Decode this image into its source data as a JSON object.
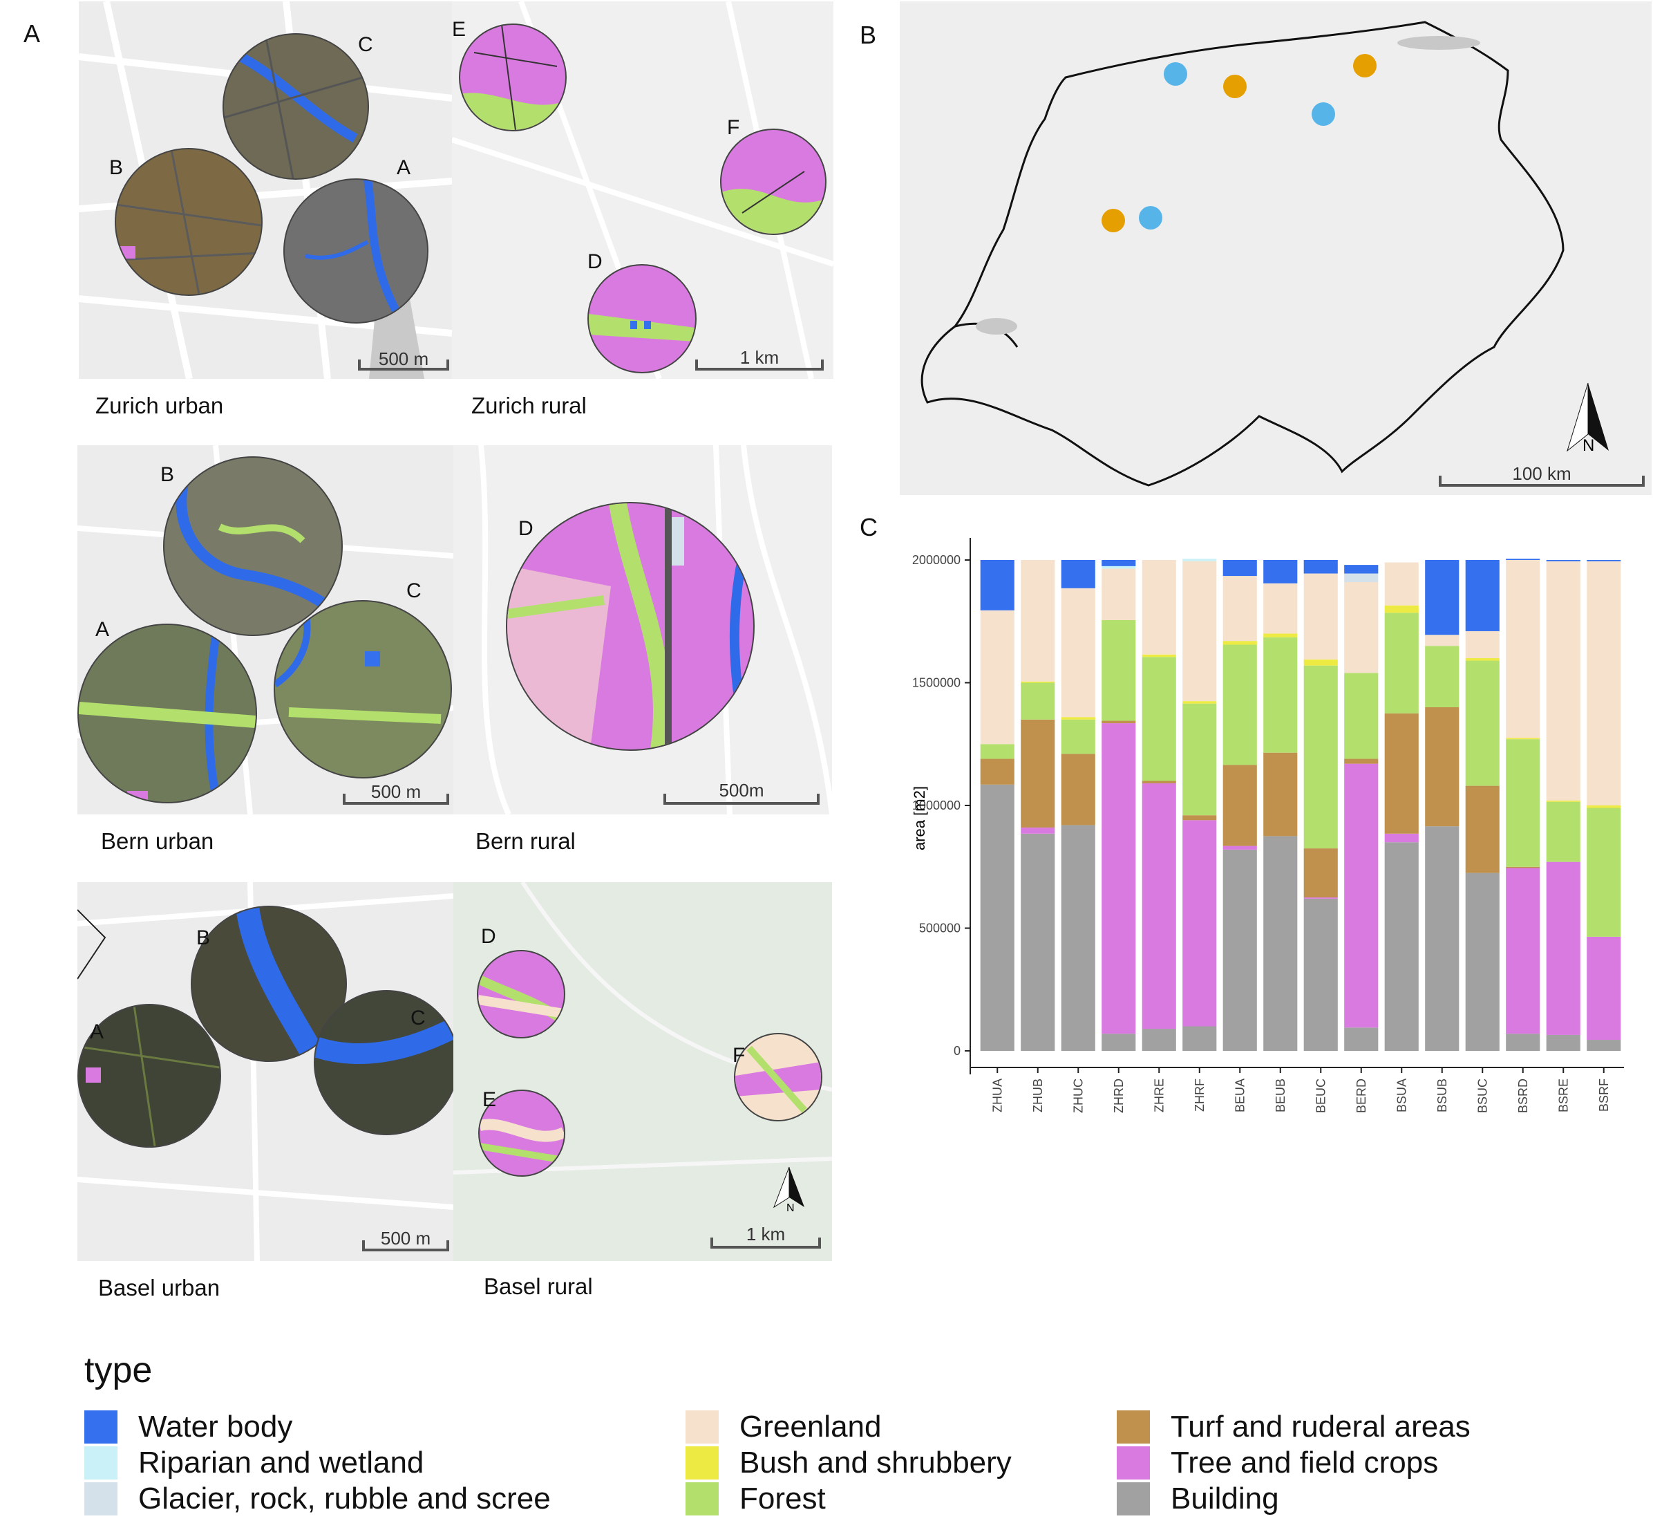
{
  "panels": {
    "a": "A",
    "b": "B",
    "c": "C"
  },
  "map_regions": [
    {
      "label": "Zurich urban",
      "circles": [
        "C",
        "B",
        "A"
      ],
      "scale": "500 m"
    },
    {
      "label": "Zurich rural",
      "circles": [
        "E",
        "F",
        "D"
      ],
      "scale": "1 km"
    },
    {
      "label": "Bern urban",
      "circles": [
        "B",
        "C",
        "A"
      ],
      "scale": "500 m"
    },
    {
      "label": "Bern rural",
      "circles": [
        "D"
      ],
      "scale": "500m"
    },
    {
      "label": "Basel urban",
      "circles": [
        "B",
        "A",
        "C"
      ],
      "scale": "500 m"
    },
    {
      "label": "Basel rural",
      "circles": [
        "D",
        "E",
        "F"
      ],
      "scale": "1 km"
    }
  ],
  "switzerland_map": {
    "scale": "100 km",
    "north": "N",
    "dot_colors": {
      "urban": "#56B4E9",
      "rural": "#E69F00"
    }
  },
  "legend": {
    "title": "type",
    "items": [
      {
        "label": "Water body",
        "color": "#3571ef"
      },
      {
        "label": "Riparian and wetland",
        "color": "#c9f1f7"
      },
      {
        "label": "Glacier, rock, rubble and scree",
        "color": "#d4e1ea"
      },
      {
        "label": "Greenland",
        "color": "#f6e2cc"
      },
      {
        "label": "Bush and shrubbery",
        "color": "#eeea44"
      },
      {
        "label": "Forest",
        "color": "#b3e06d"
      },
      {
        "label": "Turf and ruderal areas",
        "color": "#bf914d"
      },
      {
        "label": "Tree and field crops",
        "color": "#d97ae0"
      },
      {
        "label": "Building",
        "color": "#a1a1a1"
      }
    ]
  },
  "chart_data": {
    "type": "bar",
    "stacked": true,
    "title": "",
    "xlabel": "",
    "ylabel": "area [m2]",
    "ylim": [
      0,
      2000000
    ],
    "yticks": [
      0,
      500000,
      1000000,
      1500000,
      2000000
    ],
    "grid": false,
    "categories": [
      "ZHUA",
      "ZHUB",
      "ZHUC",
      "ZHRD",
      "ZHRE",
      "ZHRF",
      "BEUA",
      "BEUB",
      "BEUC",
      "BERD",
      "BSUA",
      "BSUB",
      "BSUC",
      "BSRD",
      "BSRE",
      "BSRF"
    ],
    "series": [
      {
        "name": "Building",
        "color": "#a1a1a1",
        "values": [
          1085000,
          885000,
          920000,
          70000,
          90000,
          100000,
          820000,
          875000,
          620000,
          95000,
          850000,
          915000,
          725000,
          70000,
          65000,
          45000
        ]
      },
      {
        "name": "Tree and field crops",
        "color": "#d97ae0",
        "values": [
          0,
          25000,
          0,
          1265000,
          1000000,
          840000,
          15000,
          0,
          5000,
          1075000,
          35000,
          0,
          0,
          675000,
          705000,
          420000
        ]
      },
      {
        "name": "Turf and ruderal areas",
        "color": "#bf914d",
        "values": [
          105000,
          440000,
          290000,
          10000,
          10000,
          20000,
          330000,
          340000,
          200000,
          20000,
          490000,
          485000,
          355000,
          5000,
          0,
          0
        ]
      },
      {
        "name": "Forest",
        "color": "#b3e06d",
        "values": [
          60000,
          150000,
          140000,
          410000,
          505000,
          455000,
          490000,
          470000,
          745000,
          350000,
          410000,
          250000,
          510000,
          520000,
          245000,
          525000
        ]
      },
      {
        "name": "Bush and shrubbery",
        "color": "#eeea44",
        "values": [
          0,
          5000,
          10000,
          0,
          10000,
          10000,
          15000,
          15000,
          25000,
          0,
          30000,
          0,
          10000,
          5000,
          5000,
          10000
        ]
      },
      {
        "name": "Greenland",
        "color": "#f6e2cc",
        "values": [
          545000,
          495000,
          525000,
          210000,
          385000,
          570000,
          265000,
          205000,
          350000,
          370000,
          175000,
          45000,
          110000,
          725000,
          975000,
          995000
        ]
      },
      {
        "name": "Glacier, rock, rubble and scree",
        "color": "#d4e1ea",
        "values": [
          0,
          0,
          0,
          0,
          0,
          0,
          0,
          0,
          0,
          35000,
          0,
          0,
          0,
          0,
          0,
          0
        ]
      },
      {
        "name": "Riparian and wetland",
        "color": "#c9f1f7",
        "values": [
          0,
          0,
          0,
          10000,
          0,
          10000,
          0,
          0,
          0,
          0,
          0,
          0,
          0,
          0,
          0,
          0
        ]
      },
      {
        "name": "Water body",
        "color": "#3571ef",
        "values": [
          205000,
          0,
          115000,
          25000,
          0,
          0,
          65000,
          95000,
          55000,
          35000,
          0,
          305000,
          290000,
          5000,
          5000,
          5000
        ]
      }
    ]
  }
}
